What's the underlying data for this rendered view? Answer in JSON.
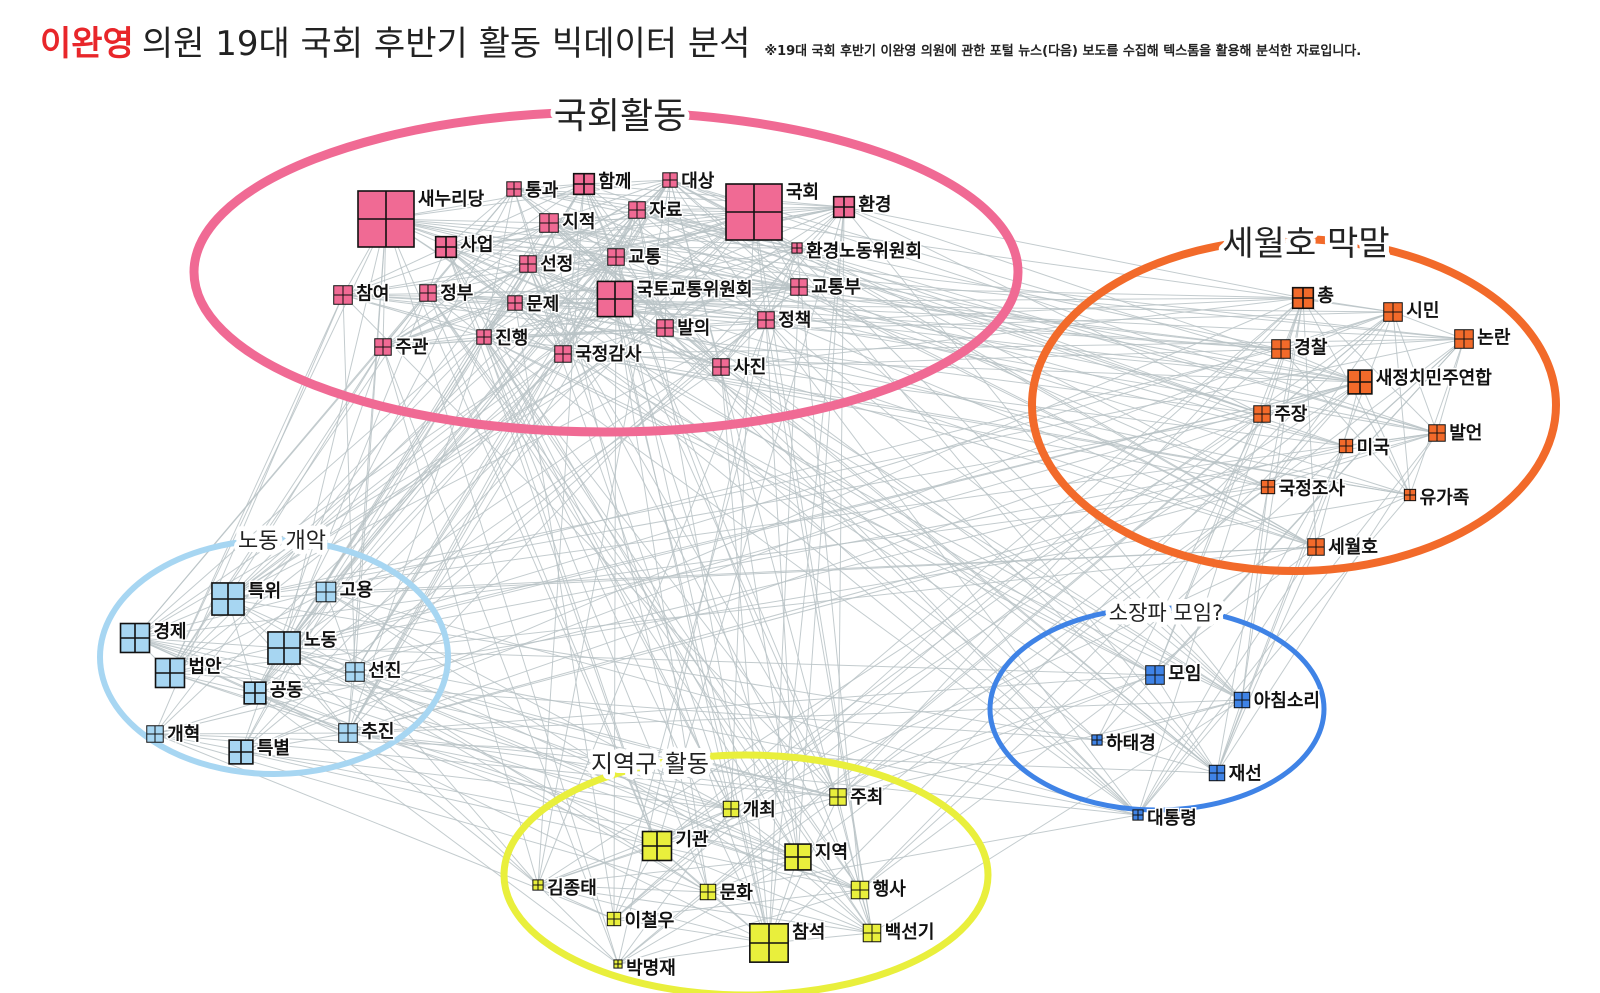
{
  "header": {
    "title_highlight": "이완영",
    "title_rest": "의원  19대 국회 후반기 활동 빅데이터 분석",
    "subtitle": "※19대 국회 후반기 이완영 의원에 관한 포털 뉴스(다음) 보도를 수집해 텍스톰을 활용해 분석한 자료입니다."
  },
  "clusters": [
    {
      "id": "assembly",
      "label": "국회활동",
      "color": "#f06a94"
    },
    {
      "id": "sewol",
      "label": "세월호 막말",
      "color": "#f26a2a"
    },
    {
      "id": "labor",
      "label": "노동 개악",
      "color": "#a7d6f2"
    },
    {
      "id": "small",
      "label": "소장파 모임?",
      "color": "#3f83e6"
    },
    {
      "id": "local",
      "label": "지역구 활동",
      "color": "#e9ef3c"
    }
  ],
  "nodes": [
    {
      "label": "새누리당",
      "cluster": "assembly",
      "weight": 5
    },
    {
      "label": "통과",
      "cluster": "assembly",
      "weight": 1
    },
    {
      "label": "함께",
      "cluster": "assembly",
      "weight": 1.6
    },
    {
      "label": "대상",
      "cluster": "assembly",
      "weight": 1
    },
    {
      "label": "국회",
      "cluster": "assembly",
      "weight": 5
    },
    {
      "label": "환경",
      "cluster": "assembly",
      "weight": 1.6
    },
    {
      "label": "지적",
      "cluster": "assembly",
      "weight": 1.4
    },
    {
      "label": "자료",
      "cluster": "assembly",
      "weight": 1.2
    },
    {
      "label": "사업",
      "cluster": "assembly",
      "weight": 1.6
    },
    {
      "label": "선정",
      "cluster": "assembly",
      "weight": 1.2
    },
    {
      "label": "교통",
      "cluster": "assembly",
      "weight": 1.2
    },
    {
      "label": "환경노동위원회",
      "cluster": "assembly",
      "weight": 0.6
    },
    {
      "label": "참여",
      "cluster": "assembly",
      "weight": 1.4
    },
    {
      "label": "정부",
      "cluster": "assembly",
      "weight": 1.2
    },
    {
      "label": "문제",
      "cluster": "assembly",
      "weight": 1
    },
    {
      "label": "국토교통위원회",
      "cluster": "assembly",
      "weight": 3
    },
    {
      "label": "교통부",
      "cluster": "assembly",
      "weight": 1.2
    },
    {
      "label": "주관",
      "cluster": "assembly",
      "weight": 1.2
    },
    {
      "label": "진행",
      "cluster": "assembly",
      "weight": 1
    },
    {
      "label": "발의",
      "cluster": "assembly",
      "weight": 1.2
    },
    {
      "label": "정책",
      "cluster": "assembly",
      "weight": 1.2
    },
    {
      "label": "국정감사",
      "cluster": "assembly",
      "weight": 1.2
    },
    {
      "label": "사진",
      "cluster": "assembly",
      "weight": 1.2
    },
    {
      "label": "총",
      "cluster": "sewol",
      "weight": 1.6
    },
    {
      "label": "시민",
      "cluster": "sewol",
      "weight": 1.4
    },
    {
      "label": "논란",
      "cluster": "sewol",
      "weight": 1.4
    },
    {
      "label": "경찰",
      "cluster": "sewol",
      "weight": 1.4
    },
    {
      "label": "새정치민주연합",
      "cluster": "sewol",
      "weight": 1.9
    },
    {
      "label": "주장",
      "cluster": "sewol",
      "weight": 1.2
    },
    {
      "label": "발언",
      "cluster": "sewol",
      "weight": 1.2
    },
    {
      "label": "미국",
      "cluster": "sewol",
      "weight": 0.9
    },
    {
      "label": "국정조사",
      "cluster": "sewol",
      "weight": 0.9
    },
    {
      "label": "유가족",
      "cluster": "sewol",
      "weight": 0.7
    },
    {
      "label": "세월호",
      "cluster": "sewol",
      "weight": 1.2
    },
    {
      "label": "특위",
      "cluster": "labor",
      "weight": 2.7
    },
    {
      "label": "고용",
      "cluster": "labor",
      "weight": 1.5
    },
    {
      "label": "경제",
      "cluster": "labor",
      "weight": 2.4
    },
    {
      "label": "노동",
      "cluster": "labor",
      "weight": 2.7
    },
    {
      "label": "법안",
      "cluster": "labor",
      "weight": 2.4
    },
    {
      "label": "선진",
      "cluster": "labor",
      "weight": 1.4
    },
    {
      "label": "공동",
      "cluster": "labor",
      "weight": 1.7
    },
    {
      "label": "개혁",
      "cluster": "labor",
      "weight": 1.2
    },
    {
      "label": "추진",
      "cluster": "labor",
      "weight": 1.4
    },
    {
      "label": "특별",
      "cluster": "labor",
      "weight": 1.9
    },
    {
      "label": "모임",
      "cluster": "small",
      "weight": 1.4
    },
    {
      "label": "아침소리",
      "cluster": "small",
      "weight": 1.1
    },
    {
      "label": "하태경",
      "cluster": "small",
      "weight": 0.6
    },
    {
      "label": "재선",
      "cluster": "small",
      "weight": 1.1
    },
    {
      "label": "대통령",
      "cluster": "small",
      "weight": 0.6
    },
    {
      "label": "개최",
      "cluster": "local",
      "weight": 1.1
    },
    {
      "label": "주최",
      "cluster": "local",
      "weight": 1.2
    },
    {
      "label": "기관",
      "cluster": "local",
      "weight": 2.4
    },
    {
      "label": "지역",
      "cluster": "local",
      "weight": 2.1
    },
    {
      "label": "김종태",
      "cluster": "local",
      "weight": 0.6
    },
    {
      "label": "문화",
      "cluster": "local",
      "weight": 1.1
    },
    {
      "label": "행사",
      "cluster": "local",
      "weight": 1.3
    },
    {
      "label": "이철우",
      "cluster": "local",
      "weight": 0.9
    },
    {
      "label": "참석",
      "cluster": "local",
      "weight": 3.3
    },
    {
      "label": "백선기",
      "cluster": "local",
      "weight": 1.3
    },
    {
      "label": "박명재",
      "cluster": "local",
      "weight": 0.4
    }
  ]
}
